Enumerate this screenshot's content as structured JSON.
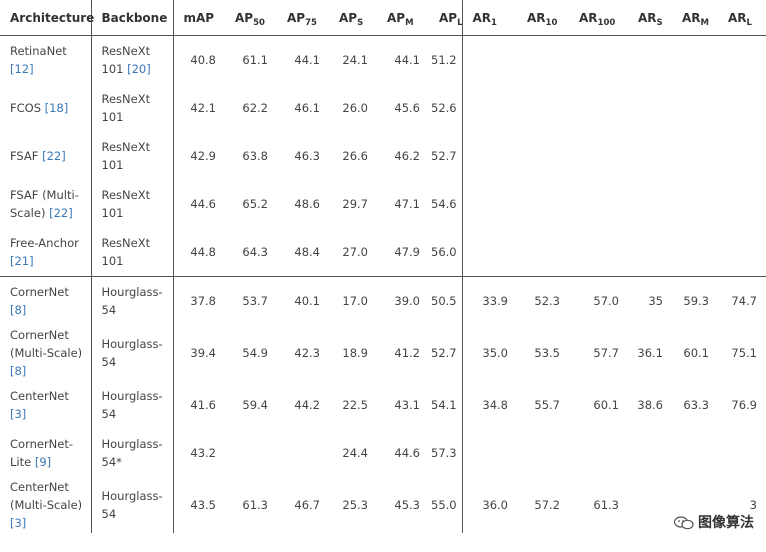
{
  "headers": {
    "architecture": "Architecture",
    "backbone": "Backbone",
    "map": "mAP",
    "ap50": {
      "base": "AP",
      "sub": "50"
    },
    "ap75": {
      "base": "AP",
      "sub": "75"
    },
    "aps": {
      "base": "AP",
      "sub": "S"
    },
    "apm": {
      "base": "AP",
      "sub": "M"
    },
    "apl": {
      "base": "AP",
      "sub": "L"
    },
    "ar1": {
      "base": "AR",
      "sub": "1"
    },
    "ar10": {
      "base": "AR",
      "sub": "10"
    },
    "ar100": {
      "base": "AR",
      "sub": "100"
    },
    "ars": {
      "base": "AR",
      "sub": "S"
    },
    "arm": {
      "base": "AR",
      "sub": "M"
    },
    "arl": {
      "base": "AR",
      "sub": "L"
    }
  },
  "rows": [
    {
      "arch": "RetinaNet",
      "ref": "[12]",
      "backbone": "ResNeXt 101",
      "bref": "[20]",
      "map": "40.8",
      "ap50": "61.1",
      "ap75": "44.1",
      "aps": "24.1",
      "apm": "44.1",
      "apl": "51.2",
      "ar1": "",
      "ar10": "",
      "ar100": "",
      "ars": "",
      "arm": "",
      "arl": ""
    },
    {
      "arch": "FCOS",
      "ref": "[18]",
      "backbone": "ResNeXt 101",
      "bref": "",
      "map": "42.1",
      "ap50": "62.2",
      "ap75": "46.1",
      "aps": "26.0",
      "apm": "45.6",
      "apl": "52.6",
      "ar1": "",
      "ar10": "",
      "ar100": "",
      "ars": "",
      "arm": "",
      "arl": ""
    },
    {
      "arch": "FSAF",
      "ref": "[22]",
      "backbone": "ResNeXt 101",
      "bref": "",
      "map": "42.9",
      "ap50": "63.8",
      "ap75": "46.3",
      "aps": "26.6",
      "apm": "46.2",
      "apl": "52.7",
      "ar1": "",
      "ar10": "",
      "ar100": "",
      "ars": "",
      "arm": "",
      "arl": ""
    },
    {
      "arch": "FSAF (Multi-Scale)",
      "ref": "[22]",
      "backbone": "ResNeXt 101",
      "bref": "",
      "map": "44.6",
      "ap50": "65.2",
      "ap75": "48.6",
      "aps": "29.7",
      "apm": "47.1",
      "apl": "54.6",
      "ar1": "",
      "ar10": "",
      "ar100": "",
      "ars": "",
      "arm": "",
      "arl": ""
    },
    {
      "arch": "Free-Anchor",
      "ref": "[21]",
      "backbone": "ResNeXt 101",
      "bref": "",
      "map": "44.8",
      "ap50": "64.3",
      "ap75": "48.4",
      "aps": "27.0",
      "apm": "47.9",
      "apl": "56.0",
      "ar1": "",
      "ar10": "",
      "ar100": "",
      "ars": "",
      "arm": "",
      "arl": ""
    },
    {
      "arch": "CornerNet",
      "ref": "[8]",
      "backbone": "Hourglass-54",
      "bref": "",
      "map": "37.8",
      "ap50": "53.7",
      "ap75": "40.1",
      "aps": "17.0",
      "apm": "39.0",
      "apl": "50.5",
      "ar1": "33.9",
      "ar10": "52.3",
      "ar100": "57.0",
      "ars": "35",
      "arm": "59.3",
      "arl": "74.7"
    },
    {
      "arch": "CornerNet (Multi-Scale)",
      "ref": "[8]",
      "backbone": "Hourglass-54",
      "bref": "",
      "map": "39.4",
      "ap50": "54.9",
      "ap75": "42.3",
      "aps": "18.9",
      "apm": "41.2",
      "apl": "52.7",
      "ar1": "35.0",
      "ar10": "53.5",
      "ar100": "57.7",
      "ars": "36.1",
      "arm": "60.1",
      "arl": "75.1"
    },
    {
      "arch": "CenterNet",
      "ref": "[3]",
      "backbone": "Hourglass-54",
      "bref": "",
      "map": "41.6",
      "ap50": "59.4",
      "ap75": "44.2",
      "aps": "22.5",
      "apm": "43.1",
      "apl": "54.1",
      "ar1": "34.8",
      "ar10": "55.7",
      "ar100": "60.1",
      "ars": "38.6",
      "arm": "63.3",
      "arl": "76.9"
    },
    {
      "arch": "CornerNet-Lite",
      "ref": "[9]",
      "backbone": "Hourglass-54*",
      "bref": "",
      "map": "43.2",
      "ap50": "",
      "ap75": "",
      "aps": "24.4",
      "apm": "44.6",
      "apl": "57.3",
      "ar1": "",
      "ar10": "",
      "ar100": "",
      "ars": "",
      "arm": "",
      "arl": ""
    },
    {
      "arch": "CenterNet (Multi-Scale)",
      "ref": "[3]",
      "backbone": "Hourglass-54",
      "bref": "",
      "map": "43.5",
      "ap50": "61.3",
      "ap75": "46.7",
      "aps": "25.3",
      "apm": "45.3",
      "apl": "55.0",
      "ar1": "36.0",
      "ar10": "57.2",
      "ar100": "61.3",
      "ars": "",
      "arm": "",
      "arl": "3"
    }
  ],
  "watermark": {
    "text": "图像算法",
    "icon": "wechat-icon"
  }
}
